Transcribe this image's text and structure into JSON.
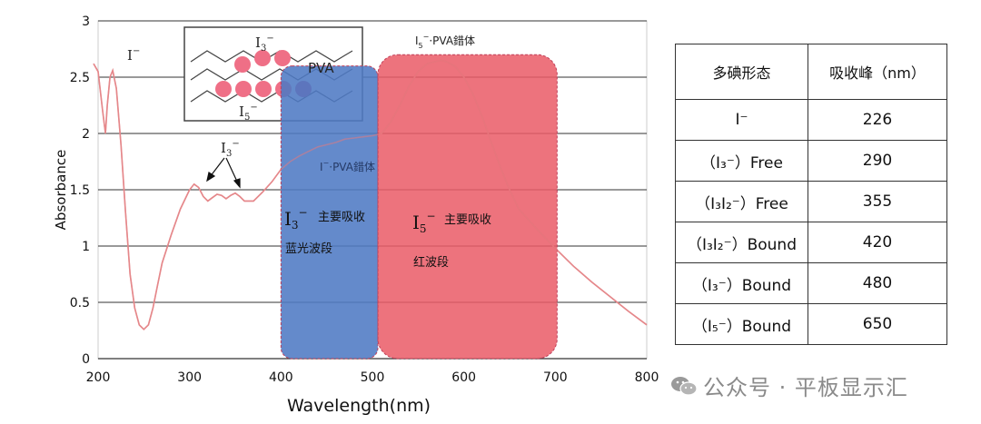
{
  "chart_data": {
    "type": "line",
    "xlabel": "Wavelength(nm)",
    "ylabel": "Absorbance",
    "xlim": [
      200,
      800
    ],
    "ylim": [
      0,
      3
    ],
    "x_ticks": [
      "200",
      "300",
      "400",
      "500",
      "600",
      "700",
      "800"
    ],
    "y_ticks": [
      "0",
      "0.5",
      "1",
      "1.5",
      "2",
      "2.5",
      "3"
    ],
    "grid": "horizontal",
    "series": [
      {
        "color": "#e5878a",
        "x": [
          195,
          200,
          205,
          208,
          210,
          213,
          216,
          220,
          225,
          230,
          235,
          240,
          245,
          250,
          255,
          260,
          265,
          270,
          280,
          290,
          300,
          305,
          310,
          315,
          320,
          325,
          330,
          335,
          340,
          345,
          350,
          355,
          360,
          370,
          380,
          390,
          400,
          410,
          420,
          430,
          440,
          450,
          460,
          470,
          480,
          490,
          500,
          510,
          520,
          530,
          540,
          550,
          560,
          570,
          575,
          580,
          585,
          590,
          600,
          610,
          620,
          630,
          640,
          650,
          660,
          680,
          700,
          720,
          740,
          760,
          780,
          800
        ],
        "y": [
          2.62,
          2.55,
          2.2,
          2.0,
          2.25,
          2.5,
          2.56,
          2.4,
          1.9,
          1.3,
          0.75,
          0.45,
          0.3,
          0.26,
          0.3,
          0.45,
          0.65,
          0.85,
          1.1,
          1.33,
          1.5,
          1.55,
          1.52,
          1.44,
          1.4,
          1.43,
          1.46,
          1.45,
          1.42,
          1.45,
          1.47,
          1.44,
          1.4,
          1.4,
          1.48,
          1.57,
          1.68,
          1.75,
          1.8,
          1.84,
          1.88,
          1.9,
          1.92,
          1.95,
          1.96,
          1.97,
          1.98,
          2.0,
          2.1,
          2.25,
          2.42,
          2.55,
          2.62,
          2.64,
          2.65,
          2.64,
          2.62,
          2.6,
          2.5,
          2.35,
          2.15,
          1.92,
          1.7,
          1.5,
          1.33,
          1.15,
          0.98,
          0.82,
          0.68,
          0.55,
          0.42,
          0.3
        ]
      }
    ],
    "regions": [
      {
        "x0": 400,
        "x1": 506,
        "y0": 0,
        "y1": 2.6,
        "color": "#4e7ac4"
      },
      {
        "x0": 506,
        "x1": 702,
        "y0": 0,
        "y1": 2.7,
        "color": "#ea5a66"
      }
    ],
    "annotations": {
      "i_minus": {
        "main": "I",
        "sup": "−"
      },
      "i3_peaks": {
        "main": "I",
        "sub": "3",
        "sup": "−"
      },
      "i3_pva": {
        "main": "I",
        "sub": "3",
        "sup": "−",
        "rest": "·PVA錯体"
      },
      "i5_pva": {
        "main": "I",
        "sub": "5",
        "sup": "−",
        "rest": "·PVA錯体"
      },
      "blue_band": {
        "main": "I",
        "sub": "3",
        "sup": "−",
        "desc": "主要吸收",
        "band": "蓝光波段"
      },
      "red_band": {
        "main": "I",
        "sub": "5",
        "sup": "−",
        "desc": "主要吸收",
        "band": "红波段"
      },
      "inset": {
        "pva": "PVA",
        "i3": {
          "main": "I",
          "sub": "3",
          "sup": "−"
        },
        "i5": {
          "main": "I",
          "sub": "5",
          "sup": "−"
        }
      }
    }
  },
  "table": {
    "header": [
      "多碘形态",
      "吸收峰（nm）"
    ],
    "rows": [
      {
        "form": "I⁻",
        "peak": "226"
      },
      {
        "form": "（I₃⁻）Free",
        "peak": "290"
      },
      {
        "form": "（I₃I₂⁻）Free",
        "peak": "355"
      },
      {
        "form": "（I₃I₂⁻）Bound",
        "peak": "420"
      },
      {
        "form": "（I₃⁻）Bound",
        "peak": "480"
      },
      {
        "form": "（I₅⁻）Bound",
        "peak": "650"
      }
    ]
  },
  "watermark": "公众号 · 平板显示汇"
}
